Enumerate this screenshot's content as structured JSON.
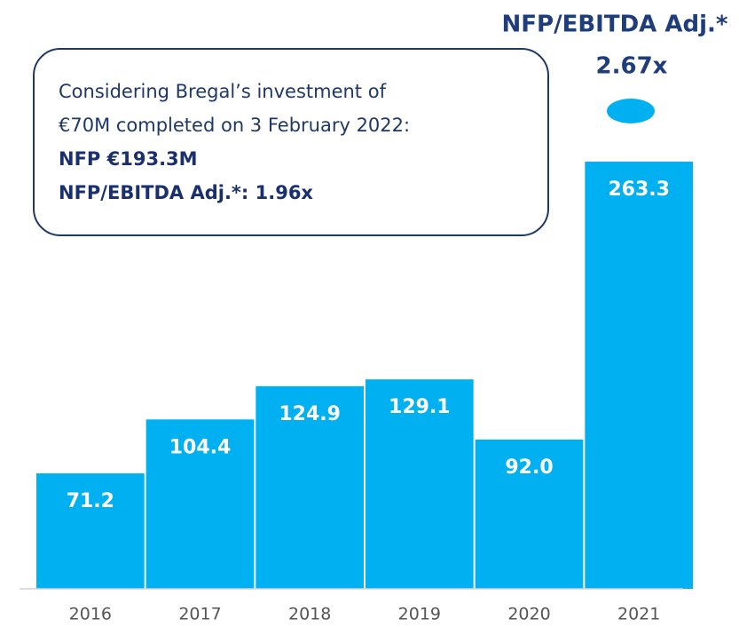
{
  "chart_data": {
    "type": "bar",
    "categories": [
      "2016",
      "2017",
      "2018",
      "2019",
      "2020",
      "2021"
    ],
    "values": [
      71.2,
      104.4,
      124.9,
      129.1,
      92.0,
      263.3
    ],
    "value_labels": [
      "71.2",
      "104.4",
      "124.9",
      "129.1",
      "92.0",
      "263.3"
    ],
    "color": "#00b0f0",
    "ylim": [
      0,
      300
    ],
    "annotations": {
      "box": [
        "Considering Bregal’s investment of",
        "€70M completed on 3 February 2022:",
        "NFP €193.3M",
        "NFP/EBITDA Adj.*: 1.96x"
      ],
      "top": [
        "NFP/EBITDA Adj.*",
        "2.67x"
      ]
    }
  }
}
